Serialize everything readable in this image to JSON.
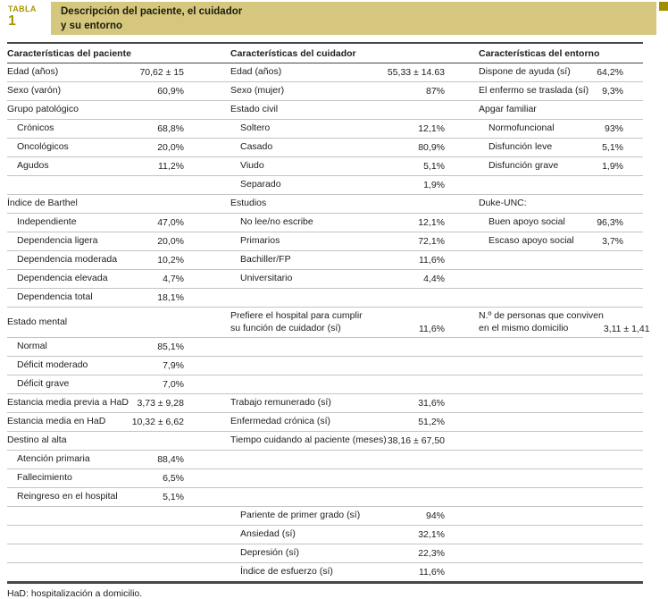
{
  "colors": {
    "band_bg": "#d5c87e",
    "accent_gold": "#a89700",
    "corner_gold": "#a18e00",
    "rule_dark": "#474747",
    "rule_light": "#c4c4c4"
  },
  "header": {
    "tag": "TABLA",
    "number": "1",
    "title_line1": "Descripción del paciente, el cuidador",
    "title_line2": "y su entorno"
  },
  "table": {
    "columns": [
      "Características del paciente",
      "Características del cuidador",
      "Características del entorno"
    ],
    "rows": [
      {
        "cells": [
          {
            "l": "Edad (años)",
            "v": "70,62 ± 15"
          },
          {
            "l": "Edad (años)",
            "v": "55,33 ± 14.63"
          },
          {
            "l": "Dispone de ayuda (sí)",
            "v": "64,2%"
          }
        ]
      },
      {
        "cells": [
          {
            "l": "Sexo (varón)",
            "v": "60,9%"
          },
          {
            "l": "Sexo (mujer)",
            "v": "87%"
          },
          {
            "l": "El enfermo se traslada (sí)",
            "v": "9,3%"
          }
        ]
      },
      {
        "cells": [
          {
            "l": "Grupo patológico"
          },
          {
            "l": "Estado civil"
          },
          {
            "l": "Apgar familiar"
          }
        ]
      },
      {
        "cells": [
          {
            "l": "Crónicos",
            "v": "68,8%",
            "ind": true
          },
          {
            "l": "Soltero",
            "v": "12,1%",
            "ind": true
          },
          {
            "l": "Normofuncional",
            "v": "93%",
            "ind": true
          }
        ]
      },
      {
        "cells": [
          {
            "l": "Oncológicos",
            "v": "20,0%",
            "ind": true
          },
          {
            "l": "Casado",
            "v": "80,9%",
            "ind": true
          },
          {
            "l": "Disfunción leve",
            "v": "5,1%",
            "ind": true
          }
        ]
      },
      {
        "cells": [
          {
            "l": "Agudos",
            "v": "11,2%",
            "ind": true
          },
          {
            "l": "Viudo",
            "v": "5,1%",
            "ind": true
          },
          {
            "l": "Disfunción grave",
            "v": "1,9%",
            "ind": true
          }
        ]
      },
      {
        "cells": [
          null,
          {
            "l": "Separado",
            "v": "1,9%",
            "ind": true
          },
          null
        ]
      },
      {
        "cells": [
          {
            "l": "Índice de Barthel"
          },
          {
            "l": "Estudios"
          },
          {
            "l": "Duke-UNC:"
          }
        ]
      },
      {
        "cells": [
          {
            "l": "Independiente",
            "v": "47,0%",
            "ind": true
          },
          {
            "l": "No lee/no escribe",
            "v": "12,1%",
            "ind": true
          },
          {
            "l": "Buen apoyo social",
            "v": "96,3%",
            "ind": true
          }
        ]
      },
      {
        "cells": [
          {
            "l": "Dependencia ligera",
            "v": "20,0%",
            "ind": true
          },
          {
            "l": "Primarios",
            "v": "72,1%",
            "ind": true
          },
          {
            "l": "Escaso apoyo social",
            "v": "3,7%",
            "ind": true
          }
        ]
      },
      {
        "cells": [
          {
            "l": "Dependencia moderada",
            "v": "10,2%",
            "ind": true
          },
          {
            "l": "Bachiller/FP",
            "v": "11,6%",
            "ind": true
          },
          null
        ]
      },
      {
        "cells": [
          {
            "l": "Dependencia elevada",
            "v": "4,7%",
            "ind": true
          },
          {
            "l": "Universitario",
            "v": "4,4%",
            "ind": true
          },
          null
        ]
      },
      {
        "cells": [
          {
            "l": "Dependencia total",
            "v": "18,1%",
            "ind": true
          },
          null,
          null
        ]
      },
      {
        "tall": true,
        "cells": [
          {
            "l": "Estado mental"
          },
          {
            "l": "Prefiere el hospital para cumplir",
            "l2": "su función de cuidador (sí)",
            "v": "11,6%"
          },
          {
            "l": "N.º de personas que conviven",
            "l2": "en el mismo domicilio",
            "v": "3,11 ± 1,41"
          }
        ]
      },
      {
        "cells": [
          {
            "l": "Normal",
            "v": "85,1%",
            "ind": true
          },
          null,
          null
        ]
      },
      {
        "cells": [
          {
            "l": "Déficit moderado",
            "v": "7,9%",
            "ind": true
          },
          null,
          null
        ]
      },
      {
        "cells": [
          {
            "l": "Déficit grave",
            "v": "7,0%",
            "ind": true
          },
          null,
          null
        ]
      },
      {
        "cells": [
          {
            "l": "Estancia media previa a HaD",
            "v": "3,73 ± 9,28"
          },
          {
            "l": "Trabajo remunerado (sí)",
            "v": "31,6%"
          },
          null
        ]
      },
      {
        "cells": [
          {
            "l": "Estancia media en HaD",
            "v": "10,32 ± 6,62"
          },
          {
            "l": "Enfermedad crónica (sí)",
            "v": "51,2%"
          },
          null
        ]
      },
      {
        "cells": [
          {
            "l": "Destino al alta"
          },
          {
            "l": "Tiempo cuidando al paciente (meses)",
            "v": "38,16 ± 67,50"
          },
          null
        ]
      },
      {
        "cells": [
          {
            "l": "Atención primaria",
            "v": "88,4%",
            "ind": true
          },
          null,
          null
        ]
      },
      {
        "cells": [
          {
            "l": "Fallecimiento",
            "v": "6,5%",
            "ind": true
          },
          null,
          null
        ]
      },
      {
        "cells": [
          {
            "l": "Reingreso en el hospital",
            "v": "5,1%",
            "ind": true
          },
          null,
          null
        ]
      },
      {
        "cells": [
          null,
          {
            "l": "Pariente de primer grado (sí)",
            "v": "94%",
            "ind": true
          },
          null
        ]
      },
      {
        "cells": [
          null,
          {
            "l": "Ansiedad (sí)",
            "v": "32,1%",
            "ind": true
          },
          null
        ]
      },
      {
        "cells": [
          null,
          {
            "l": "Depresión (sí)",
            "v": "22,3%",
            "ind": true
          },
          null
        ]
      },
      {
        "cells": [
          null,
          {
            "l": "Índice de esfuerzo (sí)",
            "v": "11,6%",
            "ind": true
          },
          null
        ]
      }
    ]
  },
  "footnote": "HaD: hospitalización a domicilio."
}
